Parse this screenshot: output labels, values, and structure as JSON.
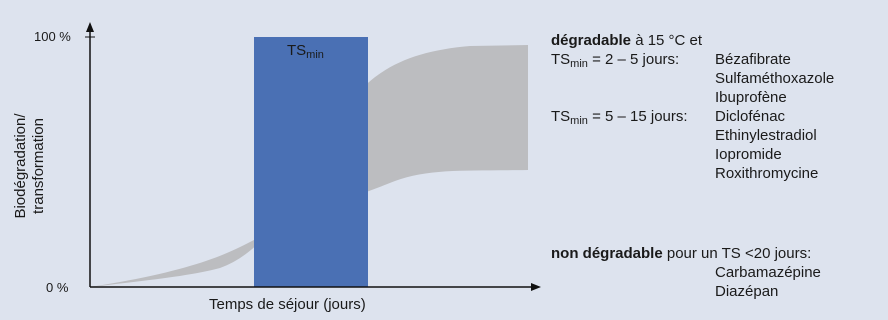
{
  "chart": {
    "y_top_label": "100 %",
    "y_bottom_label": "0 %",
    "y_title_line1": "Biodégradation/",
    "y_title_line2": "transformation",
    "x_title": "Temps de séjour (jours)",
    "band_label_main": "TS",
    "band_label_sub": "min",
    "colors": {
      "band": "#4a70b4",
      "envelope": "#bcbdc0",
      "axis": "#111111",
      "background": "#dde3ee"
    }
  },
  "legend": {
    "degradable_bold": "dégradable",
    "degradable_rest": " à 15 °C et",
    "groups": [
      {
        "ts_main": "TS",
        "ts_sub": "min",
        "ts_rest": " = 2 – 5 jours:",
        "compounds": [
          "Bézafibrate",
          "Sulfaméthoxazole",
          "Ibuprofène"
        ]
      },
      {
        "ts_main": "TS",
        "ts_sub": "min",
        "ts_rest": " = 5 – 15 jours:",
        "compounds": [
          "Diclofénac",
          "Ethinylestradiol",
          "Iopromide",
          "Roxithromycine"
        ]
      }
    ],
    "nondeg_bold": "non dégradable",
    "nondeg_rest": " pour un TS <20 jours:",
    "nondeg_compounds": [
      "Carbamazépine",
      "Diazépan"
    ]
  }
}
